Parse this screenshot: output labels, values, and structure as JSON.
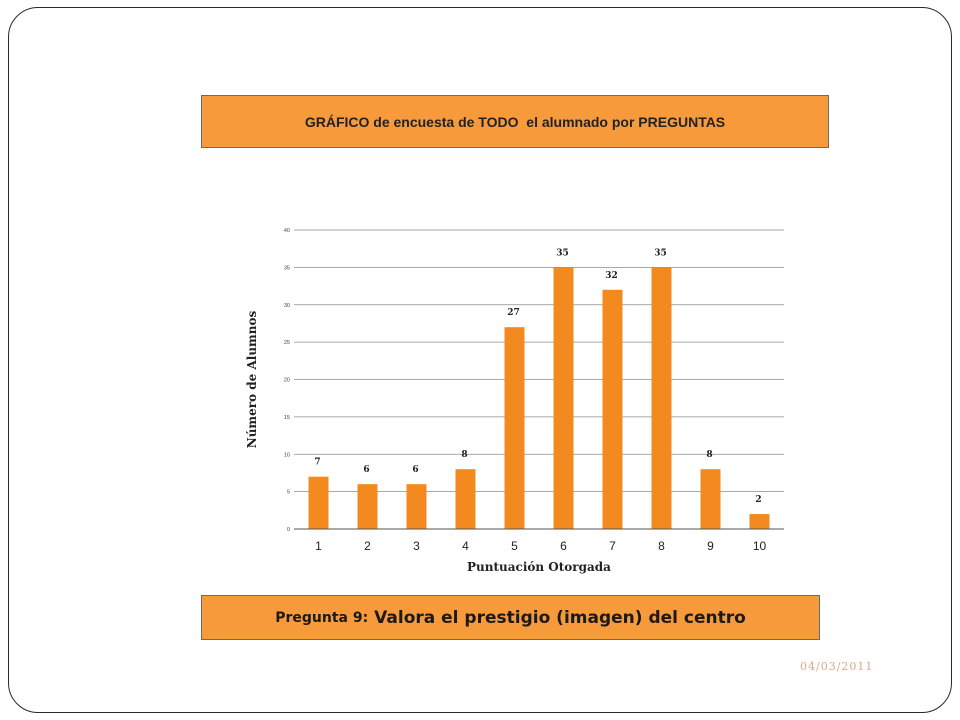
{
  "header": {
    "title": "GRÁFICO de encuesta de TODO  el alumnado por PREGUNTAS"
  },
  "question": {
    "prefix": "Pregunta 9:",
    "text": "Valora el prestigio (imagen) del centro"
  },
  "footer": {
    "date": "04/03/2011"
  },
  "colors": {
    "bar": "#f28a1f",
    "box": "#f79a3b"
  },
  "chart_data": {
    "type": "bar",
    "categories": [
      "1",
      "2",
      "3",
      "4",
      "5",
      "6",
      "7",
      "8",
      "9",
      "10"
    ],
    "values": [
      7,
      6,
      6,
      8,
      27,
      35,
      32,
      35,
      8,
      2
    ],
    "data_labels": [
      "7",
      "6",
      "6",
      "8",
      "27",
      "35",
      "32",
      "35",
      "8",
      "2"
    ],
    "xlabel": "Puntuación Otorgada",
    "ylabel": "Número de Alumnos",
    "ylim": [
      0,
      40
    ],
    "yticks": [
      0,
      5,
      10,
      15,
      20,
      25,
      30,
      35,
      40
    ],
    "grid": true,
    "legend": "none"
  }
}
